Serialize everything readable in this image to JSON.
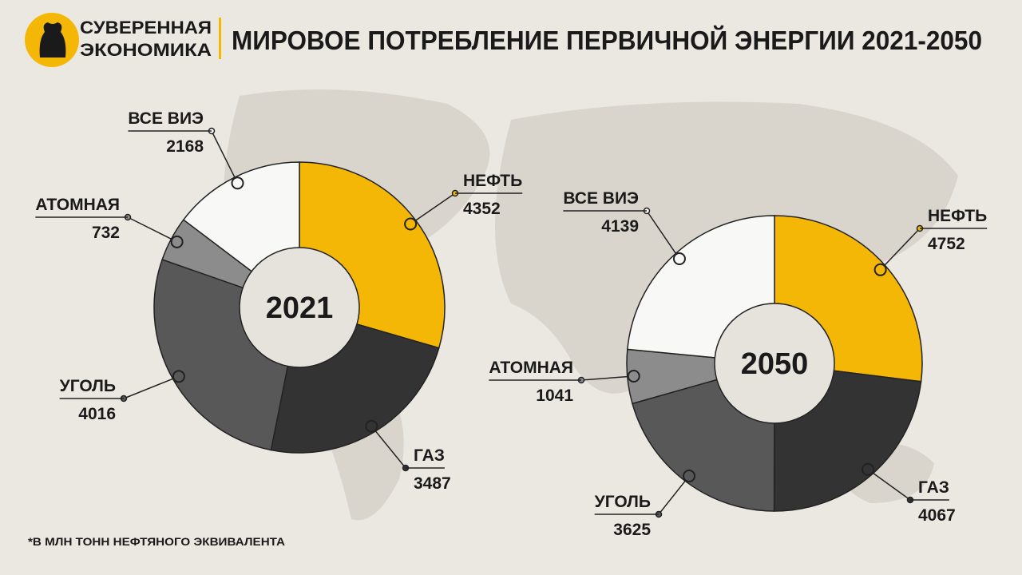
{
  "header": {
    "brand": [
      "СУВЕРЕННАЯ",
      "ЭКОНОМИКА"
    ],
    "title": "МИРОВОЕ ПОТРЕБЛЕНИЕ ПЕРВИЧНОЙ ЭНЕРГИИ 2021-2050"
  },
  "chart_data": [
    {
      "type": "pie",
      "center_label": "2021",
      "categories": [
        "НЕФТЬ",
        "ГАЗ",
        "УГОЛЬ",
        "АТОМНАЯ",
        "ВСЕ ВИЭ"
      ],
      "values": [
        4352,
        3487,
        4016,
        732,
        2168
      ],
      "colors": [
        "#f5b705",
        "#333333",
        "#585858",
        "#8c8c8c",
        "#f8f8f6"
      ]
    },
    {
      "type": "pie",
      "center_label": "2050",
      "categories": [
        "НЕФТЬ",
        "ГАЗ",
        "УГОЛЬ",
        "АТОМНАЯ",
        "ВСЕ ВИЭ"
      ],
      "values": [
        4752,
        4067,
        3625,
        1041,
        4139
      ],
      "colors": [
        "#f5b705",
        "#333333",
        "#585858",
        "#8c8c8c",
        "#f8f8f6"
      ]
    }
  ],
  "footnote": "*В МЛН ТОНН НЕФТЯНОГО ЭКВИВАЛЕНТА"
}
